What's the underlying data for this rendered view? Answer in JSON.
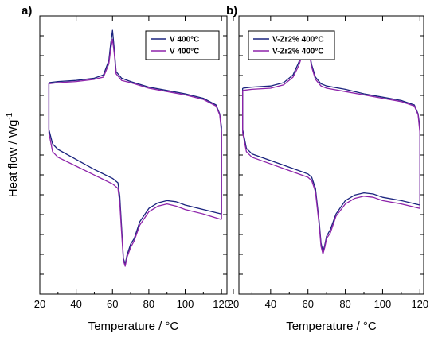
{
  "ylabel_main": "Heat flow / Wg",
  "ylabel_sup": "-1",
  "chart_data": [
    {
      "type": "line",
      "panel": "a)",
      "xlabel": "Temperature / °C",
      "ylabel": "Heat flow / Wg-1",
      "xlim": [
        20,
        123
      ],
      "xticks": [
        20,
        40,
        60,
        80,
        100,
        120
      ],
      "ylim": [
        -1.5,
        1
      ],
      "y_ticks_labeled": false,
      "legend_position": "top-right",
      "series": [
        {
          "name": "V 400°C",
          "color": "#1a237e",
          "heating": [
            [
              25,
              0.4
            ],
            [
              30,
              0.41
            ],
            [
              40,
              0.42
            ],
            [
              50,
              0.44
            ],
            [
              55,
              0.47
            ],
            [
              58,
              0.6
            ],
            [
              59,
              0.75
            ],
            [
              60,
              0.87
            ],
            [
              61,
              0.7
            ],
            [
              62,
              0.5
            ],
            [
              65,
              0.44
            ],
            [
              70,
              0.41
            ],
            [
              80,
              0.36
            ],
            [
              90,
              0.33
            ],
            [
              100,
              0.3
            ],
            [
              110,
              0.26
            ],
            [
              117,
              0.2
            ],
            [
              119,
              0.12
            ],
            [
              120,
              0.0
            ]
          ],
          "cooling": [
            [
              120,
              -0.78
            ],
            [
              110,
              -0.74
            ],
            [
              100,
              -0.7
            ],
            [
              95,
              -0.67
            ],
            [
              90,
              -0.66
            ],
            [
              85,
              -0.68
            ],
            [
              80,
              -0.73
            ],
            [
              75,
              -0.85
            ],
            [
              72,
              -1.0
            ],
            [
              70,
              -1.05
            ],
            [
              68,
              -1.15
            ],
            [
              67,
              -1.23
            ],
            [
              66,
              -1.18
            ],
            [
              65,
              -0.9
            ],
            [
              64,
              -0.62
            ],
            [
              63,
              -0.5
            ],
            [
              60,
              -0.46
            ],
            [
              50,
              -0.38
            ],
            [
              40,
              -0.29
            ],
            [
              30,
              -0.2
            ],
            [
              27,
              -0.15
            ],
            [
              25,
              -0.02
            ]
          ]
        },
        {
          "name": "V 400°C",
          "color": "#8e24aa",
          "heating": [
            [
              25,
              0.39
            ],
            [
              30,
              0.4
            ],
            [
              40,
              0.41
            ],
            [
              50,
              0.43
            ],
            [
              55,
              0.45
            ],
            [
              58,
              0.57
            ],
            [
              59,
              0.7
            ],
            [
              60,
              0.79
            ],
            [
              61,
              0.66
            ],
            [
              62,
              0.48
            ],
            [
              65,
              0.42
            ],
            [
              70,
              0.4
            ],
            [
              80,
              0.35
            ],
            [
              90,
              0.32
            ],
            [
              100,
              0.29
            ],
            [
              110,
              0.25
            ],
            [
              117,
              0.19
            ],
            [
              119,
              0.11
            ],
            [
              120,
              -0.05
            ]
          ],
          "cooling": [
            [
              120,
              -0.83
            ],
            [
              110,
              -0.78
            ],
            [
              100,
              -0.74
            ],
            [
              95,
              -0.71
            ],
            [
              90,
              -0.69
            ],
            [
              85,
              -0.71
            ],
            [
              80,
              -0.76
            ],
            [
              75,
              -0.88
            ],
            [
              72,
              -1.02
            ],
            [
              70,
              -1.08
            ],
            [
              68,
              -1.17
            ],
            [
              67,
              -1.25
            ],
            [
              66,
              -1.2
            ],
            [
              65,
              -0.95
            ],
            [
              64,
              -0.68
            ],
            [
              63,
              -0.55
            ],
            [
              60,
              -0.51
            ],
            [
              50,
              -0.43
            ],
            [
              40,
              -0.35
            ],
            [
              30,
              -0.27
            ],
            [
              27,
              -0.22
            ],
            [
              25,
              -0.05
            ]
          ]
        }
      ]
    },
    {
      "type": "line",
      "panel": "b)",
      "xlabel": "Temperature / °C",
      "ylabel": "",
      "xlim": [
        23,
        122
      ],
      "xticks": [
        20,
        40,
        60,
        80,
        100,
        120
      ],
      "ylim": [
        -1.5,
        1
      ],
      "y_ticks_labeled": false,
      "legend_position": "top-right",
      "series": [
        {
          "name": "V-Zr2% 400°C",
          "color": "#1a237e",
          "heating": [
            [
              25,
              0.35
            ],
            [
              30,
              0.36
            ],
            [
              40,
              0.37
            ],
            [
              47,
              0.4
            ],
            [
              52,
              0.47
            ],
            [
              55,
              0.58
            ],
            [
              57,
              0.68
            ],
            [
              59,
              0.72
            ],
            [
              60,
              0.71
            ],
            [
              61,
              0.65
            ],
            [
              62,
              0.56
            ],
            [
              64,
              0.45
            ],
            [
              67,
              0.39
            ],
            [
              70,
              0.37
            ],
            [
              80,
              0.34
            ],
            [
              90,
              0.3
            ],
            [
              100,
              0.27
            ],
            [
              110,
              0.24
            ],
            [
              117,
              0.2
            ],
            [
              119,
              0.12
            ],
            [
              120,
              0.0
            ]
          ],
          "cooling": [
            [
              120,
              -0.7
            ],
            [
              110,
              -0.66
            ],
            [
              100,
              -0.63
            ],
            [
              95,
              -0.6
            ],
            [
              90,
              -0.59
            ],
            [
              85,
              -0.61
            ],
            [
              80,
              -0.66
            ],
            [
              75,
              -0.78
            ],
            [
              72,
              -0.92
            ],
            [
              70,
              -0.98
            ],
            [
              69,
              -1.06
            ],
            [
              68,
              -1.12
            ],
            [
              67,
              -1.04
            ],
            [
              66,
              -0.85
            ],
            [
              64,
              -0.55
            ],
            [
              62,
              -0.45
            ],
            [
              60,
              -0.42
            ],
            [
              50,
              -0.36
            ],
            [
              40,
              -0.3
            ],
            [
              30,
              -0.24
            ],
            [
              27,
              -0.19
            ],
            [
              25,
              -0.02
            ]
          ]
        },
        {
          "name": "V-Zr2% 400°C",
          "color": "#8e24aa",
          "heating": [
            [
              25,
              0.33
            ],
            [
              30,
              0.34
            ],
            [
              40,
              0.35
            ],
            [
              47,
              0.38
            ],
            [
              52,
              0.45
            ],
            [
              55,
              0.55
            ],
            [
              57,
              0.65
            ],
            [
              59,
              0.7
            ],
            [
              60,
              0.69
            ],
            [
              61,
              0.63
            ],
            [
              62,
              0.54
            ],
            [
              64,
              0.43
            ],
            [
              67,
              0.37
            ],
            [
              70,
              0.35
            ],
            [
              80,
              0.32
            ],
            [
              90,
              0.29
            ],
            [
              100,
              0.26
            ],
            [
              110,
              0.23
            ],
            [
              117,
              0.19
            ],
            [
              119,
              0.11
            ],
            [
              120,
              -0.05
            ]
          ],
          "cooling": [
            [
              120,
              -0.73
            ],
            [
              110,
              -0.69
            ],
            [
              100,
              -0.66
            ],
            [
              95,
              -0.63
            ],
            [
              90,
              -0.62
            ],
            [
              85,
              -0.64
            ],
            [
              80,
              -0.69
            ],
            [
              75,
              -0.8
            ],
            [
              72,
              -0.95
            ],
            [
              70,
              -1.0
            ],
            [
              69,
              -1.08
            ],
            [
              68,
              -1.14
            ],
            [
              67,
              -1.07
            ],
            [
              66,
              -0.88
            ],
            [
              64,
              -0.58
            ],
            [
              62,
              -0.48
            ],
            [
              60,
              -0.45
            ],
            [
              50,
              -0.39
            ],
            [
              40,
              -0.33
            ],
            [
              30,
              -0.27
            ],
            [
              27,
              -0.22
            ],
            [
              25,
              -0.05
            ]
          ]
        }
      ]
    }
  ]
}
